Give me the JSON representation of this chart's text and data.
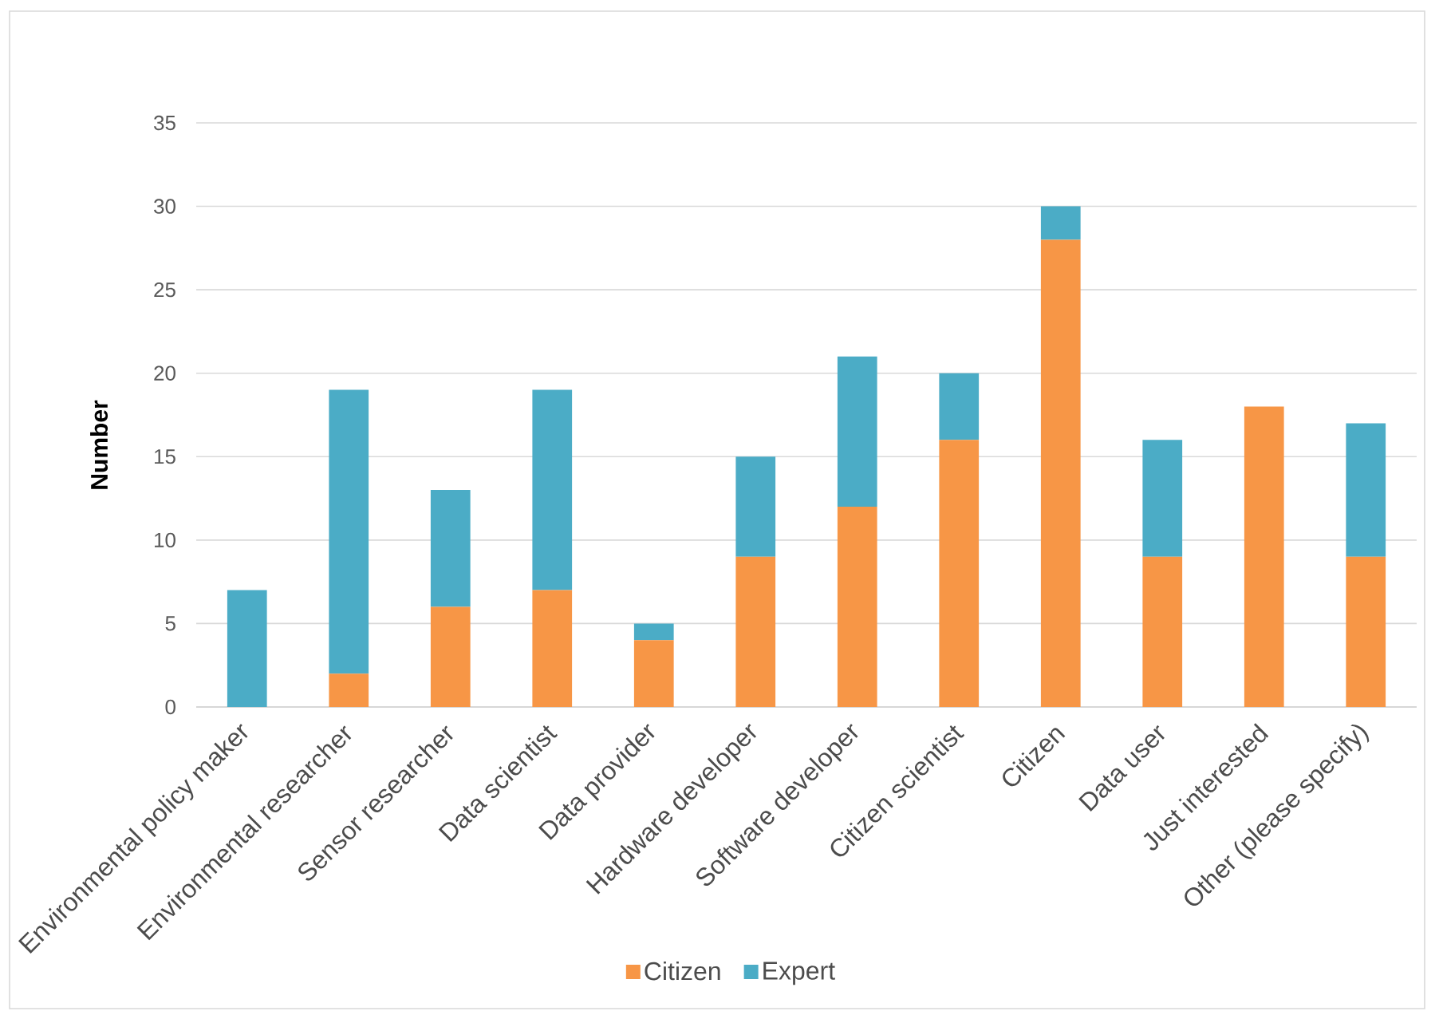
{
  "chart_data": {
    "type": "bar",
    "stacked": true,
    "ylabel": "Number",
    "categories": [
      "Environmental policy maker",
      "Environmental researcher",
      "Sensor researcher",
      "Data scientist",
      "Data provider",
      "Hardware developer",
      "Software developer",
      "Citizen scientist",
      "Citizen",
      "Data user",
      "Just interested",
      "Other (please specify)"
    ],
    "series": [
      {
        "name": "Citizen",
        "color": "#f79646",
        "values": [
          0,
          2,
          6,
          7,
          4,
          9,
          12,
          16,
          28,
          9,
          18,
          9
        ]
      },
      {
        "name": "Expert",
        "color": "#4bacc6",
        "values": [
          7,
          17,
          7,
          12,
          1,
          6,
          9,
          4,
          2,
          7,
          0,
          8
        ]
      }
    ],
    "ylim": [
      0,
      35
    ],
    "yticks": [
      0,
      5,
      10,
      15,
      20,
      25,
      30,
      35
    ],
    "grid": "y",
    "legend": "bottom"
  }
}
